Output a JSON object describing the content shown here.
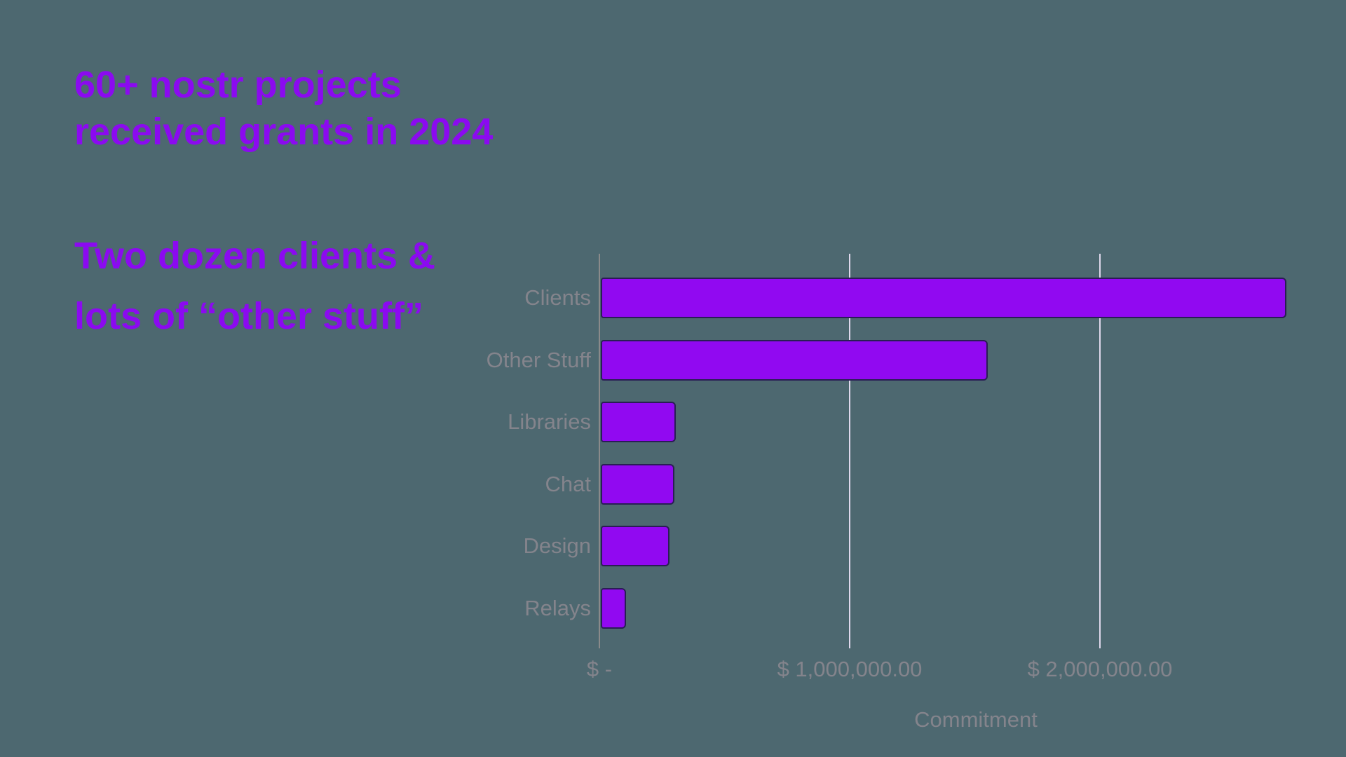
{
  "page": {
    "background_color": "#4D6870",
    "accent_color": "#8B0AF0",
    "title_lines": [
      "60+ nostr projects",
      "received grants in 2024"
    ],
    "subtitle_lines": [
      "Two dozen clients &",
      "lots of “other stuff”"
    ]
  },
  "chart_data": {
    "type": "bar",
    "orientation": "horizontal",
    "title": "",
    "categories": [
      "Clients",
      "Other Stuff",
      "Libraries",
      "Chat",
      "Design",
      "Relays"
    ],
    "values": [
      2740000,
      1545000,
      300000,
      295000,
      275000,
      100000
    ],
    "xlabel": "Commitment",
    "ylabel": "",
    "xlim": [
      0,
      3000000
    ],
    "x_ticks": [
      {
        "value": 0,
        "label": "$ -"
      },
      {
        "value": 1000000,
        "label": "$ 1,000,000.00"
      },
      {
        "value": 2000000,
        "label": "$ 2,000,000.00"
      }
    ],
    "grid": true,
    "legend": false,
    "bar_color": "#9109F1",
    "bar_border_color": "#2A1E55",
    "gridline_color": "#DFD8EC",
    "axis_line_color": "#8A8A8A",
    "label_color": "#84848C"
  }
}
